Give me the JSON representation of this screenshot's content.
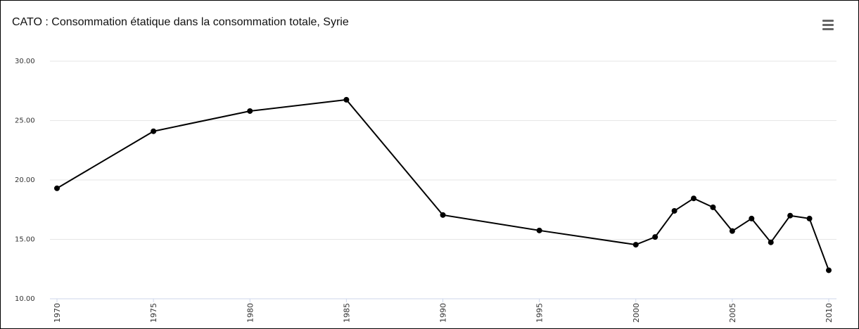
{
  "chart_data": {
    "type": "line",
    "title": "CATO : Consommation étatique dans la consommation totale, Syrie",
    "xlabel": "",
    "ylabel": "",
    "ylim": [
      10,
      30
    ],
    "xlim": [
      1970,
      2010
    ],
    "y_ticks": [
      "10.00",
      "15.00",
      "20.00",
      "25.00",
      "30.00"
    ],
    "y_tick_values": [
      10,
      15,
      20,
      25,
      30
    ],
    "x_ticks": [
      "1970",
      "1975",
      "1980",
      "1985",
      "1990",
      "1995",
      "2000",
      "2005",
      "2010"
    ],
    "x_tick_values": [
      1970,
      1975,
      1980,
      1985,
      1990,
      1995,
      2000,
      2005,
      2010
    ],
    "grid": true,
    "series": [
      {
        "color": "#000000",
        "x": [
          1970,
          1975,
          1980,
          1985,
          1990,
          1995,
          2000,
          2001,
          2002,
          2003,
          2004,
          2005,
          2006,
          2007,
          2008,
          2009,
          2010
        ],
        "values": [
          19.3,
          24.1,
          25.8,
          26.75,
          17.05,
          15.75,
          14.55,
          15.2,
          17.4,
          18.45,
          17.7,
          15.7,
          16.75,
          14.75,
          17.0,
          16.75,
          12.4
        ]
      }
    ]
  },
  "menu": {
    "icon": "hamburger-menu-icon"
  }
}
